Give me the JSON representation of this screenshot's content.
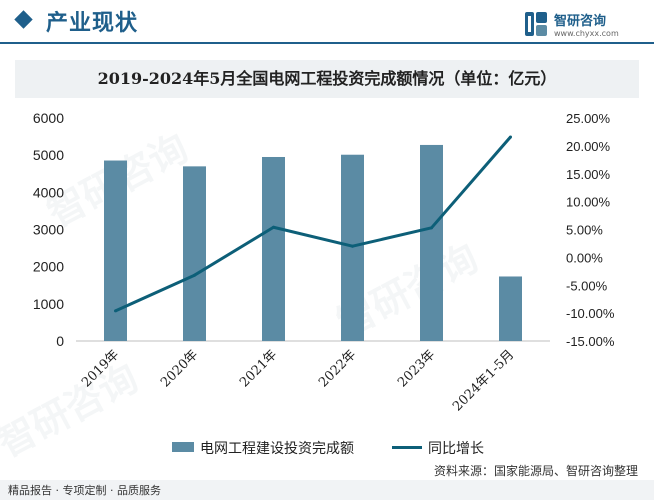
{
  "header": {
    "title": "产业现状",
    "brand_name": "智研咨询",
    "brand_url": "www.chyxx.com"
  },
  "chart_data": {
    "type": "bar",
    "title": "2019-2024年5月全国电网工程投资完成额情况（单位：亿元）",
    "categories": [
      "2019年",
      "2020年",
      "2021年",
      "2022年",
      "2023年",
      "2024年1-5月"
    ],
    "series": [
      {
        "name": "电网工程建设投资完成额",
        "type": "bar",
        "axis": "left",
        "values": [
          4856,
          4699,
          4951,
          5012,
          5275,
          1736
        ]
      },
      {
        "name": "同比增长",
        "type": "line",
        "axis": "right",
        "values": [
          -9.6,
          -3.2,
          5.4,
          2.0,
          5.3,
          21.6
        ]
      }
    ],
    "ylim_left": [
      0,
      6000
    ],
    "yticks_left": [
      "0",
      "1000",
      "2000",
      "3000",
      "4000",
      "5000",
      "6000"
    ],
    "ylim_right": [
      -15,
      25
    ],
    "yticks_right": [
      "-15.00%",
      "-10.00%",
      "-5.00%",
      "0.00%",
      "5.00%",
      "10.00%",
      "15.00%",
      "20.00%",
      "25.00%"
    ],
    "grid": false,
    "legend": "bottom",
    "colors": {
      "bar": "#5b8ba4",
      "line": "#0d5f78"
    }
  },
  "footer": {
    "source": "资料来源：国家能源局、智研咨询整理",
    "slogan": "精品报告 · 专项定制 · 品质服务"
  }
}
